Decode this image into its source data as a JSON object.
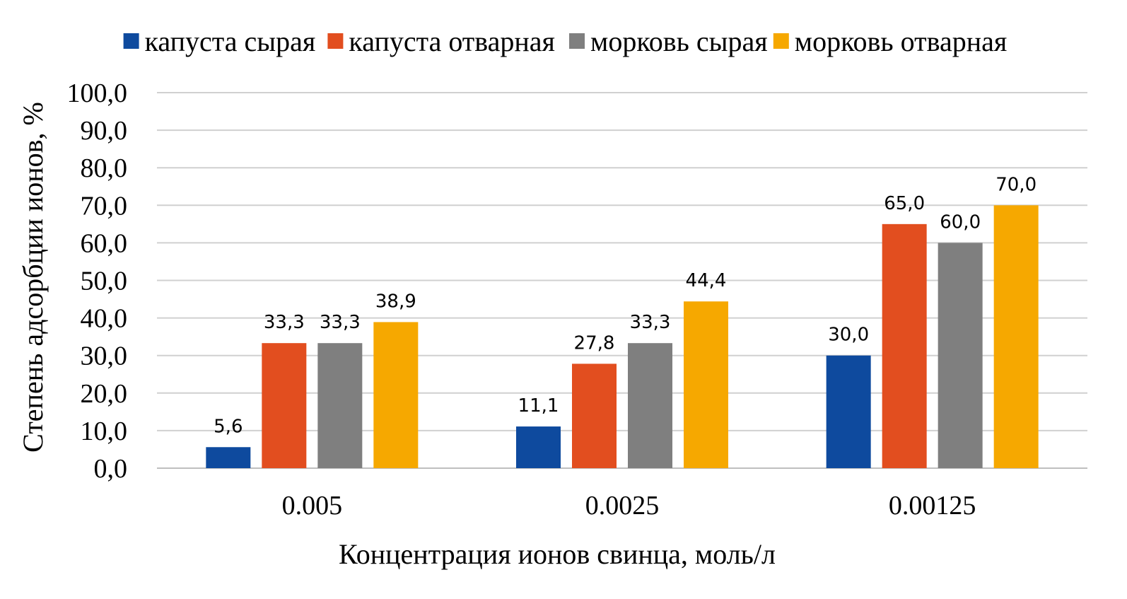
{
  "chart_data": {
    "type": "bar",
    "categories": [
      "0.005",
      "0.0025",
      "0.00125"
    ],
    "series": [
      {
        "name": "капуста сырая",
        "color": "#0e4a9e",
        "values": [
          5.6,
          11.1,
          30.0
        ],
        "labels": [
          "5,6",
          "11,1",
          "30,0"
        ]
      },
      {
        "name": "капуста отварная",
        "color": "#e24e1f",
        "values": [
          33.3,
          27.8,
          65.0
        ],
        "labels": [
          "33,3",
          "27,8",
          "65,0"
        ]
      },
      {
        "name": "морковь сырая",
        "color": "#7f7f7f",
        "values": [
          33.3,
          33.3,
          60.0
        ],
        "labels": [
          "33,3",
          "33,3",
          "60,0"
        ]
      },
      {
        "name": "морковь отварная",
        "color": "#f6a800",
        "values": [
          38.9,
          44.4,
          70.0
        ],
        "labels": [
          "38,9",
          "44,4",
          "70,0"
        ]
      }
    ],
    "xlabel": "Концентрация ионов свинца, моль/л",
    "ylabel": "Степень адсорбции ионов, %",
    "ylim": [
      0,
      100
    ],
    "yticks": [
      0,
      10,
      20,
      30,
      40,
      50,
      60,
      70,
      80,
      90,
      100
    ],
    "ytick_labels": [
      "0,0",
      "10,0",
      "20,0",
      "30,0",
      "40,0",
      "50,0",
      "60,0",
      "70,0",
      "80,0",
      "90,0",
      "100,0"
    ],
    "grid": true,
    "legend_position": "top"
  }
}
